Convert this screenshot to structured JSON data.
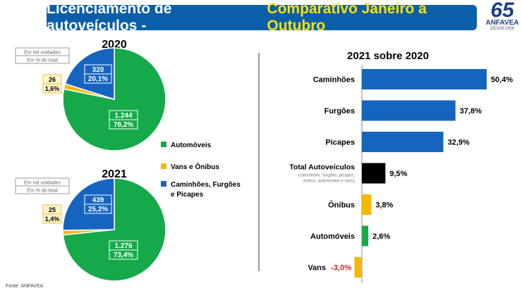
{
  "header": {
    "title_main": "Licenciamento de autoveículos -",
    "title_highlight": "Comparativo Janeiro a Outubro"
  },
  "logo": {
    "number": "65",
    "name": "ANFAVEA",
    "since": "DESDE1956"
  },
  "footer": {
    "source": "Fonte: ANFAVEA"
  },
  "colors": {
    "green": "#16a94a",
    "yellow": "#f5b800",
    "blue": "#1565c0",
    "black": "#000000",
    "negative_label": "#d42020",
    "banner": "#0a5fa8"
  },
  "chart_data": [
    {
      "type": "pie",
      "title": "2020",
      "units": [
        "Em mil unidades",
        "Em % do total"
      ],
      "slices": [
        {
          "name": "Automóveis",
          "value": 1244,
          "label": "1.244",
          "pct": "78,2%",
          "color": "#16a94a"
        },
        {
          "name": "Vans e Ônibus",
          "value": 26,
          "label": "26",
          "pct": "1,6%",
          "color": "#f5b800"
        },
        {
          "name": "Caminhões, Furgões e Picapes",
          "value": 320,
          "label": "320",
          "pct": "20,1%",
          "color": "#1565c0"
        }
      ]
    },
    {
      "type": "pie",
      "title": "2021",
      "units": [
        "Em mil unidades",
        "Em % do total"
      ],
      "slices": [
        {
          "name": "Automóveis",
          "value": 1276,
          "label": "1.276",
          "pct": "73,4%",
          "color": "#16a94a"
        },
        {
          "name": "Vans e Ônibus",
          "value": 25,
          "label": "25",
          "pct": "1,4%",
          "color": "#f5b800"
        },
        {
          "name": "Caminhões, Furgões e Picapes",
          "value": 439,
          "label": "439",
          "pct": "25,2%",
          "color": "#1565c0"
        }
      ]
    },
    {
      "type": "bar",
      "orientation": "horizontal",
      "title": "2021 sobre 2020",
      "categories": [
        "Caminhões",
        "Furgões",
        "Picapes",
        "Total Autoveículos",
        "Ônibus",
        "Automóveis",
        "Vans"
      ],
      "subnote": [
        "(caminhões, furgões, picapes,",
        "ônibus, automóveis e vans)"
      ],
      "values": [
        50.4,
        37.8,
        32.9,
        9.5,
        3.8,
        2.6,
        -3.0
      ],
      "labels": [
        "50,4%",
        "37,8%",
        "32,9%",
        "9,5%",
        "3,8%",
        "2,6%",
        "-3,0%"
      ],
      "colors": [
        "#1565c0",
        "#1565c0",
        "#1565c0",
        "#000000",
        "#f5b800",
        "#16a94a",
        "#f5b800"
      ]
    }
  ],
  "legend": [
    {
      "label": "Automóveis",
      "color": "#16a94a"
    },
    {
      "label": "Vans e Ônibus",
      "color": "#f5b800"
    },
    {
      "label": "Caminhões, Furgões",
      "label2": "e Picapes",
      "color": "#1565c0"
    }
  ]
}
